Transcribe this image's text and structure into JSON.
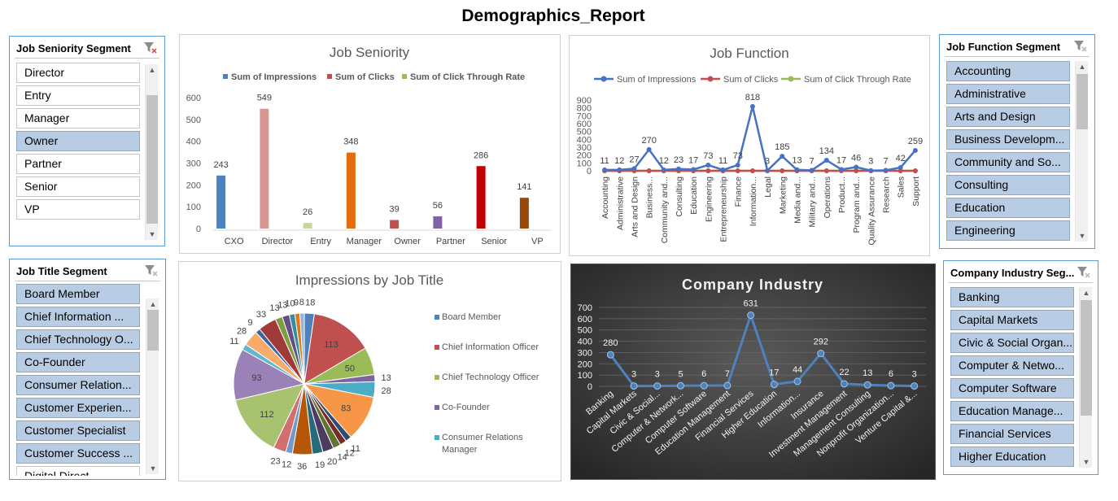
{
  "title": "Demographics_Report",
  "slicers": {
    "job_seniority": {
      "title": "Job Seniority Segment",
      "items": [
        "Director",
        "Entry",
        "Manager",
        "Owner",
        "Partner",
        "Senior",
        "VP"
      ],
      "selected": [
        "Owner"
      ]
    },
    "job_title": {
      "title": "Job Title Segment",
      "items": [
        "Board Member",
        "Chief Information ...",
        "Chief Technology O...",
        "Co-Founder",
        "Consumer Relation...",
        "Customer Experien...",
        "Customer Specialist",
        "Customer Success ...",
        "Digital Direct..."
      ],
      "selected": [
        "Board Member",
        "Chief Information ...",
        "Chief Technology O...",
        "Co-Founder",
        "Consumer Relation...",
        "Customer Experien...",
        "Customer Specialist",
        "Customer Success ..."
      ]
    },
    "job_function": {
      "title": "Job Function Segment",
      "items": [
        "Accounting",
        "Administrative",
        "Arts and Design",
        "Business Developm...",
        "Community and So...",
        "Consulting",
        "Education",
        "Engineering"
      ],
      "selected": [
        "Accounting",
        "Administrative",
        "Arts and Design",
        "Business Developm...",
        "Community and So...",
        "Consulting",
        "Education",
        "Engineering"
      ]
    },
    "company_industry": {
      "title": "Company Industry Seg...",
      "items": [
        "Banking",
        "Capital Markets",
        "Civic & Social Organ...",
        "Computer & Netwo...",
        "Computer Software",
        "Education Manage...",
        "Financial Services",
        "Higher Education"
      ],
      "selected": [
        "Banking",
        "Capital Markets",
        "Civic & Social Organ...",
        "Computer & Netwo...",
        "Computer Software",
        "Education Manage...",
        "Financial Services",
        "Higher Education"
      ]
    }
  },
  "colors": {
    "slicer_border": "#5b9bd5",
    "slicer_selected": "#b8cce4",
    "line_blue": "#4472c4",
    "line_red": "#c0504d",
    "line_green": "#9bbb59",
    "dark_bg": "#3a3a3a"
  },
  "chart_data": [
    {
      "type": "bar",
      "title": "Job Seniority",
      "categories": [
        "CXO",
        "Director",
        "Entry",
        "Manager",
        "Owner",
        "Partner",
        "Senior",
        "VP"
      ],
      "values": [
        243,
        549,
        26,
        348,
        39,
        56,
        286,
        141
      ],
      "bar_colors": [
        "#4f81bd",
        "#d99694",
        "#c4d79b",
        "#e46c0a",
        "#c0504d",
        "#8064a2",
        "#c00000",
        "#984807"
      ],
      "legend": [
        "Sum of Impressions",
        "Sum of Clicks",
        "Sum of Click Through Rate"
      ],
      "legend_colors": [
        "#4f81bd",
        "#c0504d",
        "#9bbb59"
      ],
      "yticks": [
        "600",
        "500",
        "400",
        "300",
        "200",
        "100",
        "0"
      ],
      "ylim": [
        0,
        600
      ],
      "legend_position": "top",
      "grid": false
    },
    {
      "type": "line",
      "title": "Job Function",
      "categories": [
        "Accounting",
        "Administrative",
        "Arts and Design",
        "Business...",
        "Community and...",
        "Consulting",
        "Education",
        "Engineering",
        "Entrepreneurship",
        "Finance",
        "Information...",
        "Legal",
        "Marketing",
        "Media and...",
        "Military and...",
        "Operations",
        "Product...",
        "Program and...",
        "Quality Assurance",
        "Research",
        "Sales",
        "Support"
      ],
      "series": [
        {
          "name": "Sum of Impressions",
          "values": [
            11,
            12,
            27,
            270,
            12,
            23,
            17,
            73,
            11,
            73,
            818,
            3,
            185,
            13,
            7,
            134,
            17,
            46,
            3,
            7,
            42,
            259
          ]
        },
        {
          "name": "Sum of Clicks",
          "values": [
            0,
            0,
            0,
            0,
            0,
            0,
            0,
            0,
            0,
            0,
            0,
            0,
            0,
            0,
            0,
            0,
            0,
            0,
            0,
            0,
            0,
            0
          ]
        },
        {
          "name": "Sum of Click Through Rate",
          "values": [
            0,
            0,
            0,
            0,
            0,
            0,
            0,
            0,
            0,
            0,
            0,
            0,
            0,
            0,
            0,
            0,
            0,
            0,
            0,
            0,
            0,
            0
          ]
        }
      ],
      "data_labels": [
        "11",
        "12",
        "27",
        "270",
        "12",
        "23",
        "17",
        "73",
        "11",
        "73",
        "818",
        "3",
        "185",
        "13",
        "7",
        "134",
        "17",
        "46",
        "3",
        "7",
        "42",
        "259"
      ],
      "yticks": [
        "900",
        "800",
        "700",
        "600",
        "500",
        "400",
        "300",
        "200",
        "100",
        "0"
      ],
      "ylim": [
        0,
        900
      ],
      "legend_position": "top",
      "grid": false
    },
    {
      "type": "pie",
      "title": "Impressions by Job Title",
      "values": [
        18,
        113,
        50,
        13,
        28,
        83,
        11,
        12,
        14,
        20,
        19,
        36,
        12,
        23,
        112,
        93,
        11,
        28,
        9,
        33,
        13,
        13,
        10,
        9,
        8
      ],
      "labels": [
        "18",
        "113",
        "50",
        "13",
        "28",
        "83",
        "11",
        "12",
        "14",
        "20",
        "19",
        "36",
        "12",
        "23",
        "112",
        "93",
        "11",
        "28",
        "9",
        "33",
        "13",
        "13",
        "10",
        "9",
        "8"
      ],
      "slice_colors": [
        "#4f81bd",
        "#c0504d",
        "#9bbb59",
        "#8064a2",
        "#4bacc6",
        "#f79646",
        "#2c4d75",
        "#772c2a",
        "#5f7530",
        "#4d3b62",
        "#276a7c",
        "#b65708",
        "#729aca",
        "#d06f6d",
        "#a8c36f",
        "#9a82b8",
        "#5fb8d0",
        "#f9ab6b",
        "#3a66a0",
        "#9f3a38",
        "#7f9c40",
        "#664f84",
        "#348da6",
        "#e27a11",
        "#95b3d7"
      ],
      "legend": [
        "Board Member",
        "Chief Information Officer",
        "Chief Technology Officer",
        "Co-Founder",
        "Consumer Relations Manager"
      ],
      "legend_colors": [
        "#4f81bd",
        "#c0504d",
        "#9bbb59",
        "#8064a2",
        "#4bacc6"
      ],
      "legend_position": "right"
    },
    {
      "type": "line",
      "title": "Company Industry",
      "categories": [
        "Banking",
        "Capital Markets",
        "Civic & Social...",
        "Computer & Network...",
        "Computer Software",
        "Education Management",
        "Financial Services",
        "Higher Education",
        "Information...",
        "Insurance",
        "Investment Management",
        "Management Consulting",
        "Nonprofit Organization...",
        "Venture Capital &..."
      ],
      "values": [
        280,
        3,
        3,
        5,
        6,
        7,
        631,
        17,
        44,
        292,
        22,
        13,
        6,
        3
      ],
      "data_labels": [
        "280",
        "3",
        "3",
        "5",
        "6",
        "7",
        "631",
        "17",
        "44",
        "292",
        "22",
        "13",
        "6",
        "3"
      ],
      "yticks": [
        "700",
        "600",
        "500",
        "400",
        "300",
        "200",
        "100",
        "0"
      ],
      "ylim": [
        0,
        700
      ],
      "grid": true
    }
  ]
}
